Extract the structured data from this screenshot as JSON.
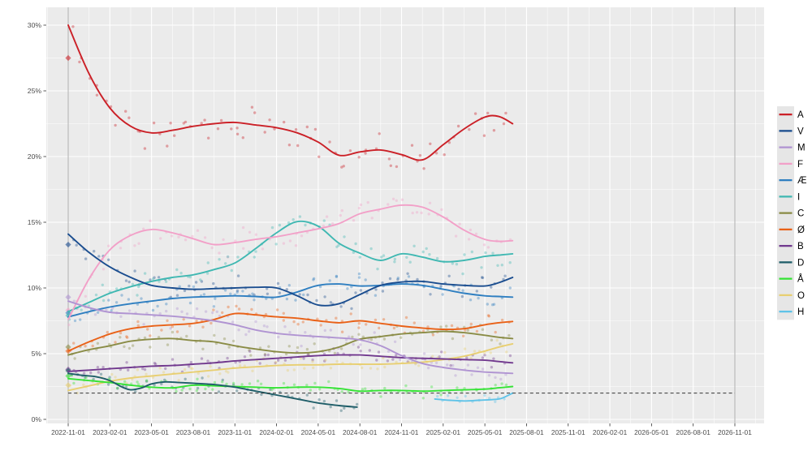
{
  "chart_data": {
    "type": "scatter",
    "title": "",
    "description": "Danish party polling: scatter of individual polls with smoothed trend lines per party, from 2022-11-01 election to mid-2025, axis extended to 2026-11-01",
    "x_axis": {
      "tick_labels": [
        "2022-11-01",
        "2023-02-01",
        "2023-05-01",
        "2023-08-01",
        "2023-11-01",
        "2024-02-01",
        "2024-05-01",
        "2024-08-01",
        "2024-11-01",
        "2025-02-01",
        "2025-05-01",
        "2025-08-01",
        "2025-11-01",
        "2026-02-01",
        "2026-05-01",
        "2026-08-01",
        "2026-11-01"
      ],
      "range_months": 48,
      "grid": true
    },
    "y_axis": {
      "tick_labels": [
        "0%",
        "5%",
        "10%",
        "15%",
        "20%",
        "25%",
        "30%"
      ],
      "min": 0,
      "max": 30,
      "grid": true
    },
    "threshold_line": {
      "value": 2,
      "style": "dashed",
      "color": "#333333"
    },
    "vertical_marker_lines": [
      {
        "label": "2022-11-01",
        "month": 0
      },
      {
        "label": "2026-11-01",
        "month": 48
      }
    ],
    "legend_position": "right",
    "panel_bg": "#ebebeb",
    "grid_color": "#ffffff",
    "axis_text_color": "#4d4d4d",
    "series": [
      {
        "name": "A",
        "color": "#cb2027",
        "election_result": 27.5,
        "spread": 1.15,
        "points": [
          [
            0,
            30
          ],
          [
            1.5,
            26.3
          ],
          [
            3,
            23.7
          ],
          [
            4.5,
            22.3
          ],
          [
            6,
            21.8
          ],
          [
            7.5,
            22
          ],
          [
            9,
            22.3
          ],
          [
            10.5,
            22.5
          ],
          [
            12,
            22.6
          ],
          [
            13.5,
            22.4
          ],
          [
            15,
            22.2
          ],
          [
            16.5,
            21.8
          ],
          [
            18,
            21.1
          ],
          [
            19.5,
            20.1
          ],
          [
            21,
            20.35
          ],
          [
            22.5,
            20.5
          ],
          [
            24,
            20.15
          ],
          [
            25.5,
            19.75
          ],
          [
            27,
            20.9
          ],
          [
            28.5,
            22.1
          ],
          [
            30,
            23
          ],
          [
            31,
            23.05
          ],
          [
            32,
            22.5
          ]
        ]
      },
      {
        "name": "V",
        "color": "#1a4d8f",
        "election_result": 13.3,
        "spread": 0.75,
        "points": [
          [
            0,
            14.1
          ],
          [
            1.5,
            12.7
          ],
          [
            3,
            11.6
          ],
          [
            4.5,
            10.8
          ],
          [
            6,
            10.2
          ],
          [
            7.5,
            10
          ],
          [
            9,
            9.9
          ],
          [
            10.5,
            9.95
          ],
          [
            12,
            10
          ],
          [
            13.5,
            10.05
          ],
          [
            15,
            10
          ],
          [
            16.5,
            9.4
          ],
          [
            18,
            8.7
          ],
          [
            19.5,
            8.8
          ],
          [
            21,
            9.5
          ],
          [
            22.5,
            10.2
          ],
          [
            24,
            10.45
          ],
          [
            25.5,
            10.5
          ],
          [
            27,
            10.3
          ],
          [
            28.5,
            10.2
          ],
          [
            30,
            10.15
          ],
          [
            31,
            10.4
          ],
          [
            32,
            10.8
          ]
        ]
      },
      {
        "name": "M",
        "color": "#b094d2",
        "election_result": 9.3,
        "spread": 0.8,
        "points": [
          [
            0,
            9
          ],
          [
            1.5,
            8.5
          ],
          [
            3,
            8.15
          ],
          [
            4.5,
            8.05
          ],
          [
            6,
            7.95
          ],
          [
            7.5,
            7.85
          ],
          [
            9,
            7.7
          ],
          [
            10.5,
            7.5
          ],
          [
            12,
            7.2
          ],
          [
            13.5,
            6.8
          ],
          [
            15,
            6.55
          ],
          [
            16.5,
            6.4
          ],
          [
            18,
            6.3
          ],
          [
            19.5,
            6.2
          ],
          [
            21,
            6.05
          ],
          [
            22.5,
            5.6
          ],
          [
            24,
            4.85
          ],
          [
            25.5,
            4.25
          ],
          [
            27,
            3.95
          ],
          [
            28.5,
            3.75
          ],
          [
            30,
            3.6
          ],
          [
            31,
            3.55
          ],
          [
            32,
            3.5
          ]
        ]
      },
      {
        "name": "F",
        "color": "#f2a0c8",
        "election_result": 8.3,
        "spread": 0.95,
        "points": [
          [
            0,
            7.6
          ],
          [
            1.5,
            10.7
          ],
          [
            3,
            12.9
          ],
          [
            4.5,
            14
          ],
          [
            6,
            14.45
          ],
          [
            7.5,
            14.2
          ],
          [
            9,
            13.75
          ],
          [
            10.5,
            13.3
          ],
          [
            12,
            13.45
          ],
          [
            13.5,
            13.7
          ],
          [
            15,
            13.9
          ],
          [
            16.5,
            14.2
          ],
          [
            18,
            14.5
          ],
          [
            19.5,
            14.9
          ],
          [
            21,
            15.65
          ],
          [
            22.5,
            16
          ],
          [
            24,
            16.3
          ],
          [
            25.5,
            16.15
          ],
          [
            27,
            15.4
          ],
          [
            28.5,
            14.4
          ],
          [
            30,
            13.7
          ],
          [
            31,
            13.55
          ],
          [
            32,
            13.6
          ]
        ]
      },
      {
        "name": "Æ",
        "color": "#2f7fc1",
        "election_result": 8.1,
        "spread": 0.85,
        "points": [
          [
            0,
            7.8
          ],
          [
            1.5,
            8.2
          ],
          [
            3,
            8.55
          ],
          [
            4.5,
            8.8
          ],
          [
            6,
            9
          ],
          [
            7.5,
            9.2
          ],
          [
            9,
            9.3
          ],
          [
            10.5,
            9.35
          ],
          [
            12,
            9.4
          ],
          [
            13.5,
            9.35
          ],
          [
            15,
            9.3
          ],
          [
            16.5,
            9.7
          ],
          [
            18,
            10.2
          ],
          [
            19.5,
            10.3
          ],
          [
            21,
            10.15
          ],
          [
            22.5,
            10.2
          ],
          [
            24,
            10.3
          ],
          [
            25.5,
            10.2
          ],
          [
            27,
            9.9
          ],
          [
            28.5,
            9.6
          ],
          [
            30,
            9.4
          ],
          [
            31,
            9.35
          ],
          [
            32,
            9.3
          ]
        ]
      },
      {
        "name": "I",
        "color": "#40b8b2",
        "election_result": 7.9,
        "spread": 0.85,
        "points": [
          [
            0,
            8.2
          ],
          [
            1.5,
            8.9
          ],
          [
            3,
            9.6
          ],
          [
            4.5,
            10.1
          ],
          [
            6,
            10.5
          ],
          [
            7.5,
            10.8
          ],
          [
            9,
            11
          ],
          [
            10.5,
            11.4
          ],
          [
            12,
            11.9
          ],
          [
            13.5,
            13
          ],
          [
            15,
            14.2
          ],
          [
            16.5,
            15.05
          ],
          [
            18,
            14.7
          ],
          [
            19.5,
            13.4
          ],
          [
            21,
            12.65
          ],
          [
            22.5,
            12.1
          ],
          [
            24,
            12.6
          ],
          [
            25.5,
            12.35
          ],
          [
            27,
            12
          ],
          [
            28.5,
            12.1
          ],
          [
            30,
            12.4
          ],
          [
            31,
            12.5
          ],
          [
            32,
            12.6
          ]
        ]
      },
      {
        "name": "C",
        "color": "#8a8c46",
        "election_result": 5.5,
        "spread": 0.6,
        "points": [
          [
            0,
            4.9
          ],
          [
            1.5,
            5.3
          ],
          [
            3,
            5.6
          ],
          [
            4.5,
            5.95
          ],
          [
            6,
            6.1
          ],
          [
            7.5,
            6.15
          ],
          [
            9,
            6
          ],
          [
            10.5,
            5.9
          ],
          [
            12,
            5.6
          ],
          [
            13.5,
            5.35
          ],
          [
            15,
            5.15
          ],
          [
            16.5,
            5.05
          ],
          [
            18,
            5.15
          ],
          [
            19.5,
            5.5
          ],
          [
            21,
            6.1
          ],
          [
            22.5,
            6.3
          ],
          [
            24,
            6.5
          ],
          [
            25.5,
            6.6
          ],
          [
            27,
            6.7
          ],
          [
            28.5,
            6.6
          ],
          [
            30,
            6.4
          ],
          [
            31,
            6.25
          ],
          [
            32,
            6.15
          ]
        ]
      },
      {
        "name": "Ø",
        "color": "#e96117",
        "election_result": 5.2,
        "spread": 0.7,
        "points": [
          [
            0,
            5.2
          ],
          [
            1.5,
            5.9
          ],
          [
            3,
            6.5
          ],
          [
            4.5,
            6.9
          ],
          [
            6,
            7.1
          ],
          [
            7.5,
            7.2
          ],
          [
            9,
            7.3
          ],
          [
            10.5,
            7.6
          ],
          [
            12,
            8.05
          ],
          [
            13.5,
            7.95
          ],
          [
            15,
            7.8
          ],
          [
            16.5,
            7.7
          ],
          [
            18,
            7.5
          ],
          [
            19.5,
            7.35
          ],
          [
            21,
            7.5
          ],
          [
            22.5,
            7.3
          ],
          [
            24,
            7.1
          ],
          [
            25.5,
            6.95
          ],
          [
            27,
            6.85
          ],
          [
            28.5,
            6.9
          ],
          [
            30,
            7.2
          ],
          [
            31,
            7.35
          ],
          [
            32,
            7.45
          ]
        ]
      },
      {
        "name": "B",
        "color": "#71398e",
        "election_result": 3.8,
        "spread": 0.55,
        "points": [
          [
            0,
            3.65
          ],
          [
            1.5,
            3.75
          ],
          [
            3,
            3.85
          ],
          [
            4.5,
            3.95
          ],
          [
            6,
            4.05
          ],
          [
            7.5,
            4.1
          ],
          [
            9,
            4.2
          ],
          [
            10.5,
            4.3
          ],
          [
            12,
            4.45
          ],
          [
            13.5,
            4.55
          ],
          [
            15,
            4.65
          ],
          [
            16.5,
            4.75
          ],
          [
            18,
            4.85
          ],
          [
            19.5,
            4.9
          ],
          [
            21,
            4.9
          ],
          [
            22.5,
            4.8
          ],
          [
            24,
            4.7
          ],
          [
            25.5,
            4.65
          ],
          [
            27,
            4.6
          ],
          [
            28.5,
            4.55
          ],
          [
            30,
            4.5
          ],
          [
            31,
            4.4
          ],
          [
            32,
            4.3
          ]
        ]
      },
      {
        "name": "D",
        "color": "#1e5d68",
        "election_result": 3.7,
        "spread": 0.5,
        "points": [
          [
            0,
            3.5
          ],
          [
            1,
            3.35
          ],
          [
            2,
            3.25
          ],
          [
            3,
            2.95
          ],
          [
            3.8,
            2.5
          ],
          [
            4.5,
            2.25
          ],
          [
            5.3,
            2.4
          ],
          [
            6,
            2.7
          ],
          [
            7,
            2.85
          ],
          [
            8,
            2.8
          ],
          [
            9,
            2.75
          ],
          [
            10.5,
            2.65
          ],
          [
            12,
            2.45
          ],
          [
            13.5,
            2.15
          ],
          [
            15,
            1.85
          ],
          [
            16.5,
            1.55
          ],
          [
            18,
            1.25
          ],
          [
            19.5,
            1.05
          ],
          [
            20.8,
            0.93
          ]
        ]
      },
      {
        "name": "Å",
        "color": "#35e335",
        "election_result": 3.3,
        "spread": 0.5,
        "points": [
          [
            0,
            3.1
          ],
          [
            1.5,
            2.95
          ],
          [
            3,
            2.8
          ],
          [
            4.5,
            2.6
          ],
          [
            6,
            2.45
          ],
          [
            7.5,
            2.4
          ],
          [
            9,
            2.6
          ],
          [
            10.5,
            2.55
          ],
          [
            12,
            2.5
          ],
          [
            13.5,
            2.45
          ],
          [
            15,
            2.4
          ],
          [
            16.5,
            2.45
          ],
          [
            18,
            2.45
          ],
          [
            19.5,
            2.35
          ],
          [
            21,
            2.15
          ],
          [
            22.5,
            2.2
          ],
          [
            24,
            2.2
          ],
          [
            25.5,
            2.15
          ],
          [
            27,
            2.2
          ],
          [
            28.5,
            2.25
          ],
          [
            30,
            2.3
          ],
          [
            31,
            2.4
          ],
          [
            32,
            2.5
          ]
        ]
      },
      {
        "name": "O",
        "color": "#e8cf72",
        "election_result": 2.6,
        "spread": 0.55,
        "points": [
          [
            0,
            2.2
          ],
          [
            1.5,
            2.55
          ],
          [
            3,
            2.9
          ],
          [
            4.5,
            3.15
          ],
          [
            6,
            3.3
          ],
          [
            7.5,
            3.45
          ],
          [
            9,
            3.6
          ],
          [
            10.5,
            3.75
          ],
          [
            12,
            3.9
          ],
          [
            13.5,
            4
          ],
          [
            15,
            4.1
          ],
          [
            16.5,
            4.15
          ],
          [
            18,
            4.15
          ],
          [
            19.5,
            4.2
          ],
          [
            21,
            4.2
          ],
          [
            22.5,
            4.2
          ],
          [
            24,
            4.25
          ],
          [
            25.5,
            4.35
          ],
          [
            27,
            4.55
          ],
          [
            28.5,
            4.8
          ],
          [
            30,
            5.2
          ],
          [
            31,
            5.5
          ],
          [
            32,
            5.75
          ]
        ]
      },
      {
        "name": "H",
        "color": "#5fc3e8",
        "election_result": null,
        "spread": 0.35,
        "points": [
          [
            26.4,
            1.55
          ],
          [
            27.5,
            1.45
          ],
          [
            28.5,
            1.4
          ],
          [
            29.5,
            1.45
          ],
          [
            30.5,
            1.5
          ],
          [
            31.2,
            1.6
          ],
          [
            32,
            2
          ]
        ]
      }
    ]
  }
}
